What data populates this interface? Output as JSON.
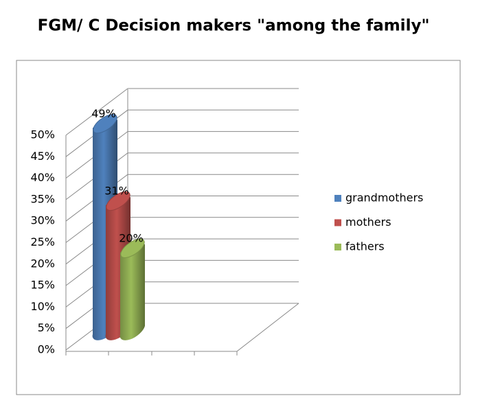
{
  "chart_data": {
    "type": "bar3d",
    "title": "FGM/ C Decision makers \"among the family\"",
    "categories": [
      null
    ],
    "series": [
      {
        "name": "grandmothers",
        "color": "#4f81bd",
        "values": [
          49
        ],
        "value_labels": [
          "49%"
        ]
      },
      {
        "name": "mothers",
        "color": "#c0504d",
        "values": [
          31
        ],
        "value_labels": [
          "31%"
        ]
      },
      {
        "name": "fathers",
        "color": "#9bbb59",
        "values": [
          20
        ],
        "value_labels": [
          "20%"
        ]
      }
    ],
    "ylim": [
      0,
      50
    ],
    "yticks": [
      {
        "value": 0,
        "label": "0%"
      },
      {
        "value": 5,
        "label": "5%"
      },
      {
        "value": 10,
        "label": "10%"
      },
      {
        "value": 15,
        "label": "15%"
      },
      {
        "value": 20,
        "label": "20%"
      },
      {
        "value": 25,
        "label": "25%"
      },
      {
        "value": 30,
        "label": "30%"
      },
      {
        "value": 35,
        "label": "35%"
      },
      {
        "value": 40,
        "label": "40%"
      },
      {
        "value": 45,
        "label": "45%"
      },
      {
        "value": 50,
        "label": "50%"
      }
    ],
    "grid": true,
    "legend": "right"
  }
}
